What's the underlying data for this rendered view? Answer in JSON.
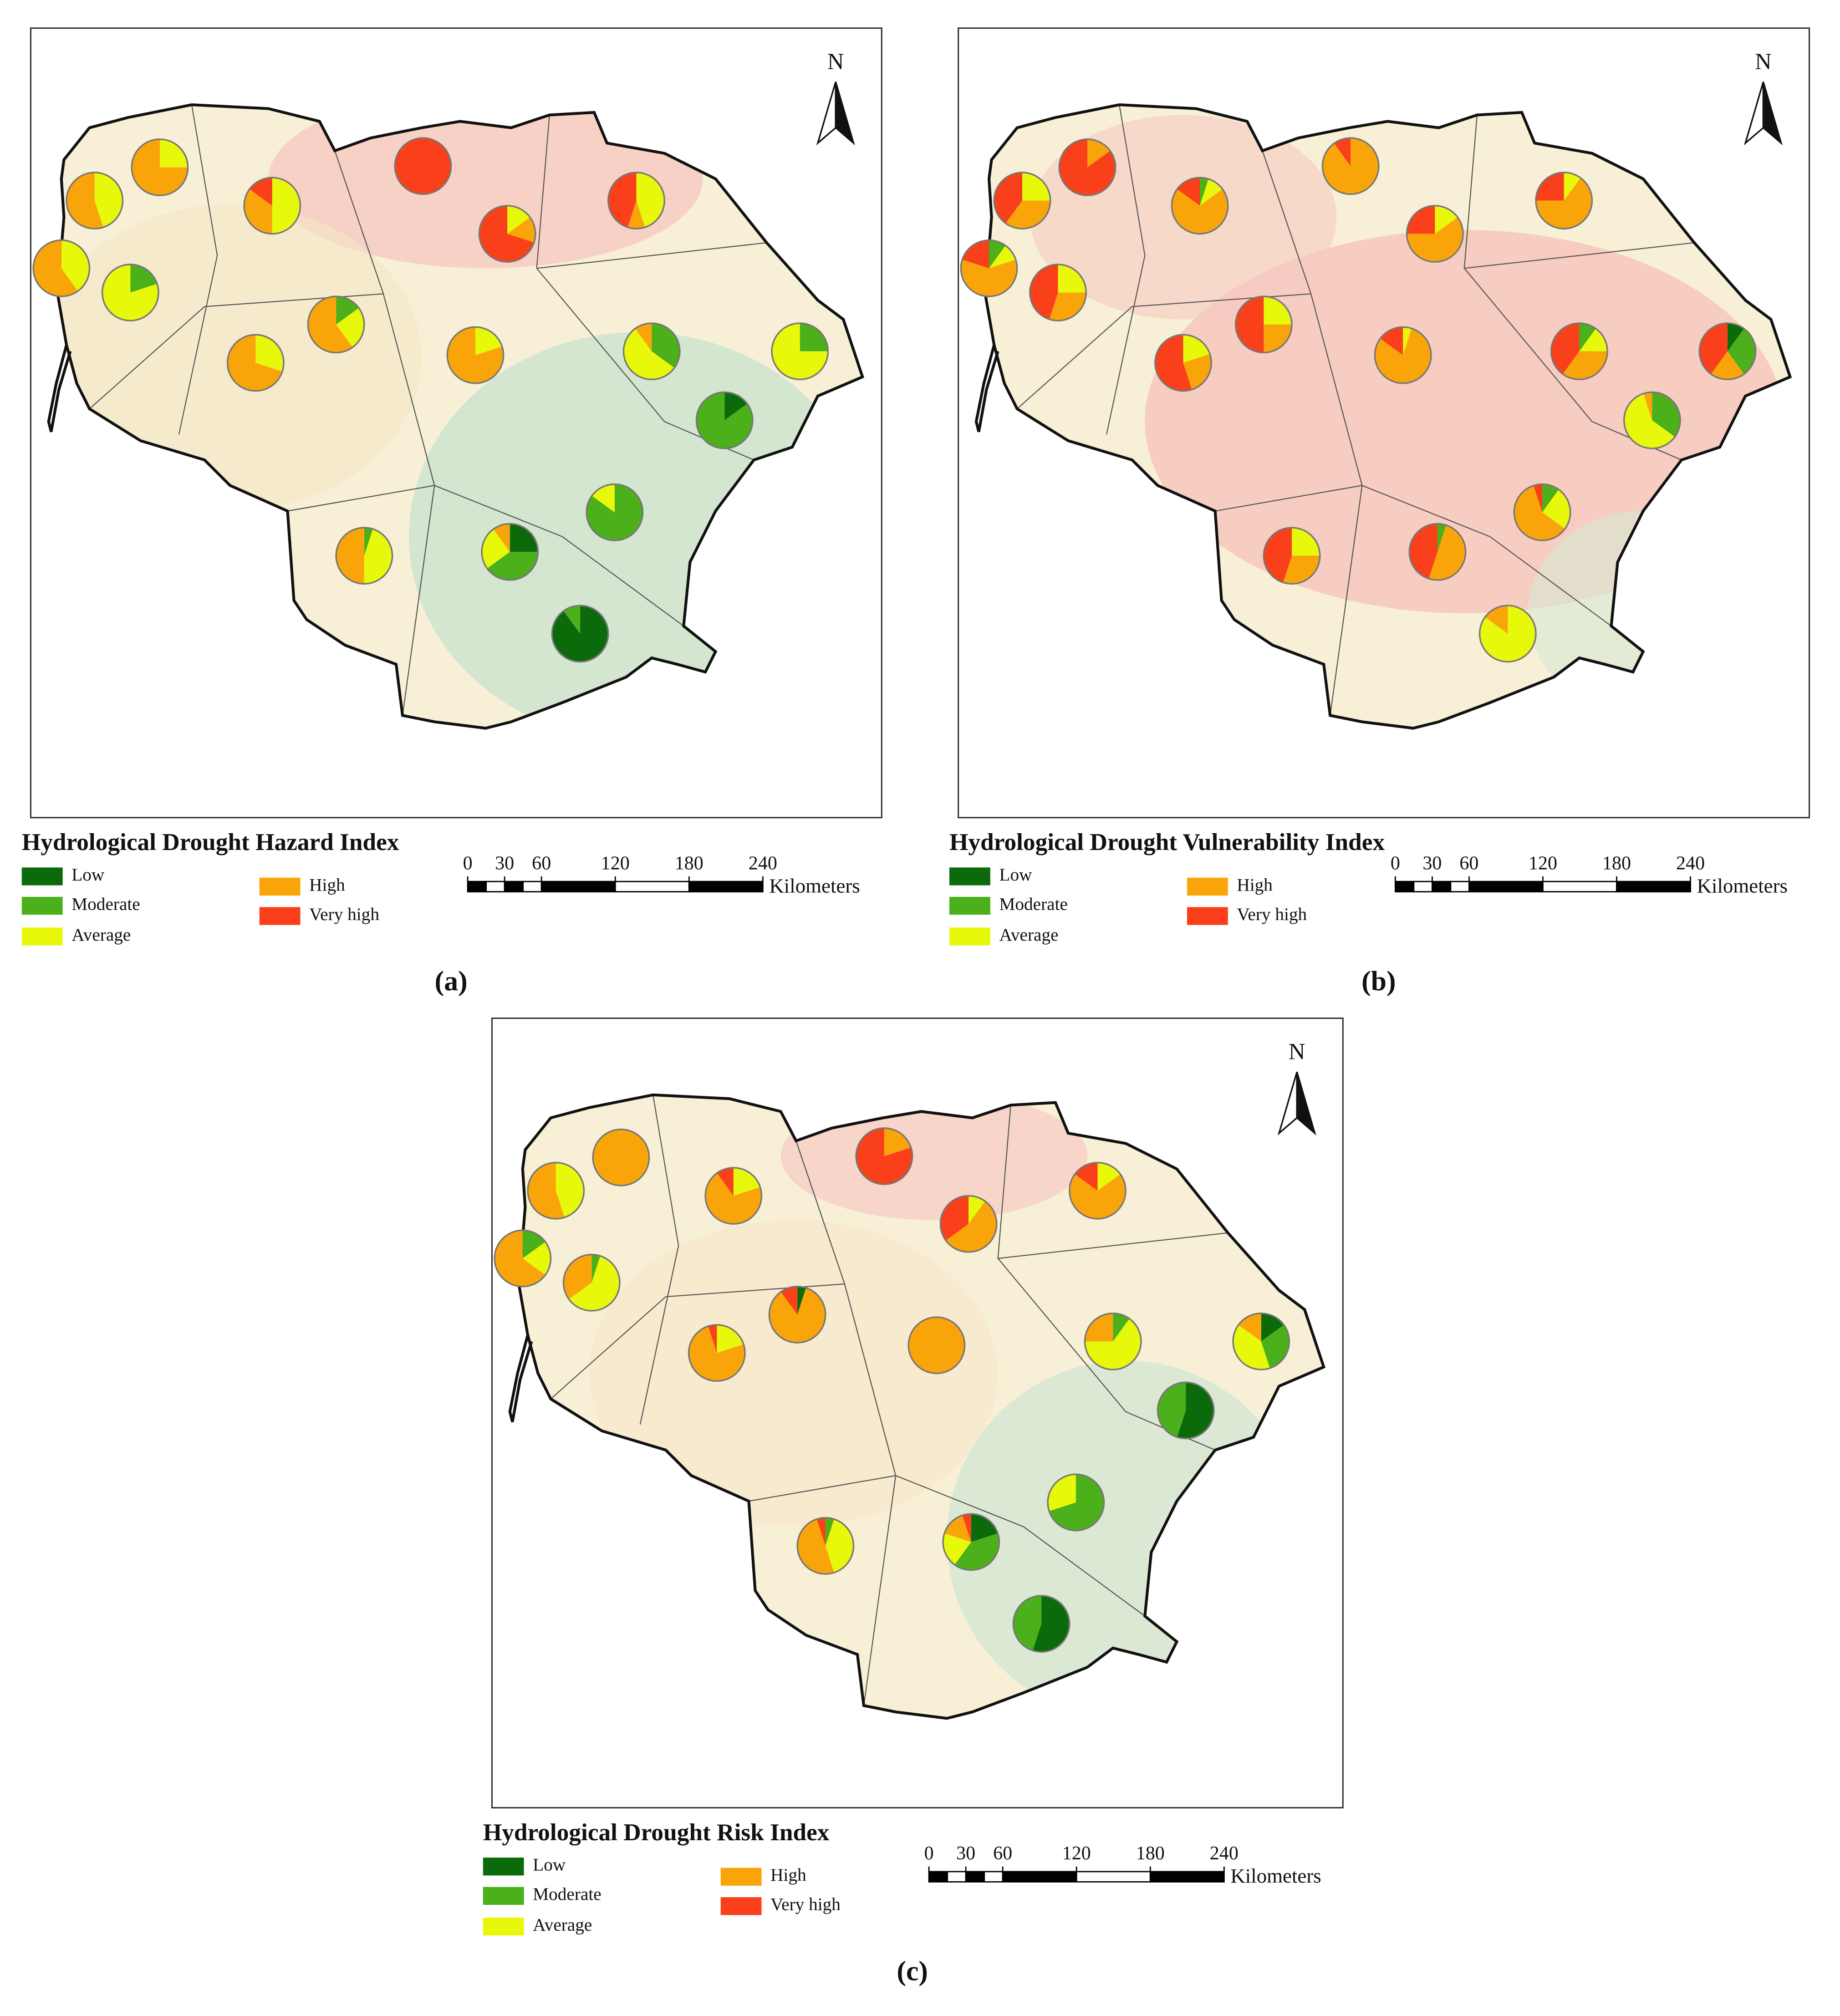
{
  "legend_classes": [
    {
      "name": "Low",
      "color": "#0b6b0b"
    },
    {
      "name": "Moderate",
      "color": "#4cb01a"
    },
    {
      "name": "Average",
      "color": "#e8f80a"
    },
    {
      "name": "High",
      "color": "#f9a50a"
    },
    {
      "name": "Very high",
      "color": "#f9401a"
    }
  ],
  "scale_bar": {
    "ticks": [
      0,
      30,
      60,
      120,
      180,
      240
    ],
    "unit": "Kilometers"
  },
  "north_label": "N",
  "panels": [
    {
      "label": "(a)",
      "title": "Hydrological Drought Hazard Index",
      "pies": [
        [
          0,
          0,
          40,
          60,
          0
        ],
        [
          0,
          0,
          45,
          55,
          0
        ],
        [
          0,
          0,
          25,
          75,
          0
        ],
        [
          0,
          20,
          80,
          0,
          0
        ],
        [
          0,
          0,
          50,
          35,
          15
        ],
        [
          0,
          0,
          0,
          0,
          100
        ],
        [
          0,
          0,
          15,
          15,
          70
        ],
        [
          0,
          0,
          45,
          10,
          45
        ],
        [
          0,
          0,
          30,
          70,
          0
        ],
        [
          0,
          15,
          25,
          60,
          0
        ],
        [
          0,
          0,
          20,
          80,
          0
        ],
        [
          0,
          35,
          55,
          10,
          0
        ],
        [
          0,
          25,
          75,
          0,
          0
        ],
        [
          15,
          85,
          0,
          0,
          0
        ],
        [
          0,
          85,
          15,
          0,
          0
        ],
        [
          25,
          40,
          25,
          10,
          0
        ],
        [
          0,
          5,
          45,
          50,
          0
        ],
        [
          90,
          10,
          0,
          0,
          0
        ]
      ]
    },
    {
      "label": "(b)",
      "title": "Hydrological Drought Vulnerability Index",
      "pies": [
        [
          0,
          10,
          10,
          60,
          20
        ],
        [
          0,
          0,
          25,
          35,
          40
        ],
        [
          0,
          0,
          0,
          15,
          85
        ],
        [
          0,
          0,
          25,
          30,
          45
        ],
        [
          0,
          5,
          10,
          70,
          15
        ],
        [
          0,
          0,
          0,
          90,
          10
        ],
        [
          0,
          0,
          15,
          60,
          25
        ],
        [
          0,
          0,
          10,
          65,
          25
        ],
        [
          0,
          0,
          20,
          25,
          55
        ],
        [
          0,
          0,
          25,
          25,
          50
        ],
        [
          0,
          0,
          5,
          80,
          15
        ],
        [
          0,
          10,
          15,
          35,
          40
        ],
        [
          10,
          30,
          0,
          20,
          40
        ],
        [
          0,
          35,
          60,
          5,
          0
        ],
        [
          0,
          10,
          25,
          60,
          5
        ],
        [
          0,
          5,
          0,
          50,
          45
        ],
        [
          0,
          0,
          25,
          30,
          45
        ],
        [
          0,
          0,
          85,
          15,
          0
        ]
      ]
    },
    {
      "label": "(c)",
      "title": "Hydrological Drought Risk Index",
      "pies": [
        [
          0,
          15,
          20,
          65,
          0
        ],
        [
          0,
          0,
          45,
          55,
          0
        ],
        [
          0,
          0,
          0,
          100,
          0
        ],
        [
          0,
          5,
          60,
          35,
          0
        ],
        [
          0,
          0,
          20,
          70,
          10
        ],
        [
          0,
          0,
          0,
          20,
          80
        ],
        [
          0,
          0,
          10,
          55,
          35
        ],
        [
          0,
          0,
          15,
          70,
          15
        ],
        [
          0,
          0,
          20,
          75,
          5
        ],
        [
          5,
          0,
          0,
          85,
          10
        ],
        [
          0,
          0,
          0,
          100,
          0
        ],
        [
          0,
          10,
          65,
          25,
          0
        ],
        [
          15,
          30,
          40,
          15,
          0
        ],
        [
          55,
          45,
          0,
          0,
          0
        ],
        [
          0,
          70,
          30,
          0,
          0
        ],
        [
          20,
          40,
          20,
          15,
          5
        ],
        [
          0,
          5,
          40,
          50,
          5
        ],
        [
          55,
          45,
          0,
          0,
          0
        ]
      ]
    }
  ]
}
